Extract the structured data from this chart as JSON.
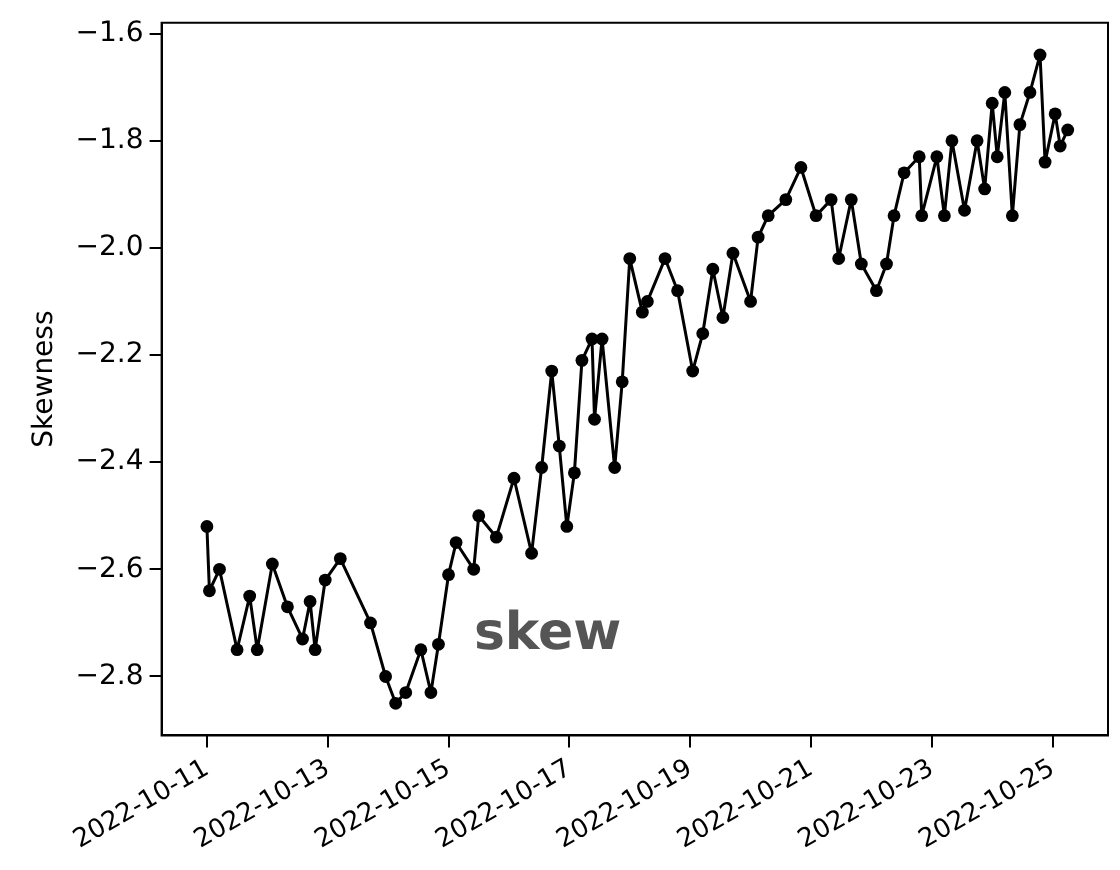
{
  "chart_data": {
    "type": "line",
    "ylabel": "Skewness",
    "annotations": [
      "skew"
    ],
    "marker": "circle",
    "grid": false,
    "legend": false,
    "xlim": [
      "2022-10-10T06:00",
      "2022-10-25T22:00"
    ],
    "ylim": [
      -2.91,
      -1.58
    ],
    "xticks": [
      {
        "value": "2022-10-11",
        "label": "2022-10-11"
      },
      {
        "value": "2022-10-13",
        "label": "2022-10-13"
      },
      {
        "value": "2022-10-15",
        "label": "2022-10-15"
      },
      {
        "value": "2022-10-17",
        "label": "2022-10-17"
      },
      {
        "value": "2022-10-19",
        "label": "2022-10-19"
      },
      {
        "value": "2022-10-21",
        "label": "2022-10-21"
      },
      {
        "value": "2022-10-23",
        "label": "2022-10-23"
      },
      {
        "value": "2022-10-25",
        "label": "2022-10-25"
      }
    ],
    "yticks": [
      {
        "value": -2.8,
        "label": "−2.8"
      },
      {
        "value": -2.6,
        "label": "−2.6"
      },
      {
        "value": -2.4,
        "label": "−2.4"
      },
      {
        "value": -2.2,
        "label": "−2.2"
      },
      {
        "value": -2.0,
        "label": "−2.0"
      },
      {
        "value": -1.8,
        "label": "−1.8"
      },
      {
        "value": -1.6,
        "label": "−1.6"
      }
    ],
    "x": [
      "2022-10-11T00:00",
      "2022-10-11T01:00",
      "2022-10-11T05:00",
      "2022-10-11T12:00",
      "2022-10-11T17:00",
      "2022-10-11T20:00",
      "2022-10-12T02:00",
      "2022-10-12T08:00",
      "2022-10-12T14:00",
      "2022-10-12T17:00",
      "2022-10-12T19:00",
      "2022-10-12T23:00",
      "2022-10-13T05:00",
      "2022-10-13T17:00",
      "2022-10-13T23:00",
      "2022-10-14T03:00",
      "2022-10-14T07:00",
      "2022-10-14T13:00",
      "2022-10-14T17:00",
      "2022-10-14T20:00",
      "2022-10-15T00:00",
      "2022-10-15T03:00",
      "2022-10-15T10:00",
      "2022-10-15T12:00",
      "2022-10-15T19:00",
      "2022-10-16T02:00",
      "2022-10-16T09:00",
      "2022-10-16T13:00",
      "2022-10-16T17:00",
      "2022-10-16T20:00",
      "2022-10-16T23:00",
      "2022-10-17T02:00",
      "2022-10-17T05:00",
      "2022-10-17T09:00",
      "2022-10-17T10:00",
      "2022-10-17T13:00",
      "2022-10-17T18:00",
      "2022-10-17T21:00",
      "2022-10-18T00:00",
      "2022-10-18T05:00",
      "2022-10-18T07:00",
      "2022-10-18T14:00",
      "2022-10-18T19:00",
      "2022-10-19T01:00",
      "2022-10-19T05:00",
      "2022-10-19T09:00",
      "2022-10-19T13:00",
      "2022-10-19T17:00",
      "2022-10-20T00:00",
      "2022-10-20T03:00",
      "2022-10-20T07:00",
      "2022-10-20T14:00",
      "2022-10-20T20:00",
      "2022-10-21T02:00",
      "2022-10-21T08:00",
      "2022-10-21T11:00",
      "2022-10-21T16:00",
      "2022-10-21T20:00",
      "2022-10-22T02:00",
      "2022-10-22T06:00",
      "2022-10-22T09:00",
      "2022-10-22T13:00",
      "2022-10-22T19:00",
      "2022-10-22T20:00",
      "2022-10-23T02:00",
      "2022-10-23T05:00",
      "2022-10-23T08:00",
      "2022-10-23T13:00",
      "2022-10-23T18:00",
      "2022-10-23T21:00",
      "2022-10-24T00:00",
      "2022-10-24T02:00",
      "2022-10-24T05:00",
      "2022-10-24T08:00",
      "2022-10-24T11:00",
      "2022-10-24T15:00",
      "2022-10-24T19:00",
      "2022-10-24T21:00",
      "2022-10-25T01:00",
      "2022-10-25T03:00",
      "2022-10-25T06:00"
    ],
    "series": [
      {
        "color": "#000000",
        "values": [
          -2.52,
          -2.64,
          -2.6,
          -2.75,
          -2.65,
          -2.75,
          -2.59,
          -2.67,
          -2.73,
          -2.66,
          -2.75,
          -2.62,
          -2.58,
          -2.7,
          -2.8,
          -2.85,
          -2.83,
          -2.75,
          -2.83,
          -2.74,
          -2.61,
          -2.55,
          -2.6,
          -2.5,
          -2.54,
          -2.43,
          -2.57,
          -2.41,
          -2.23,
          -2.37,
          -2.52,
          -2.42,
          -2.21,
          -2.17,
          -2.32,
          -2.17,
          -2.41,
          -2.25,
          -2.02,
          -2.12,
          -2.1,
          -2.02,
          -2.08,
          -2.23,
          -2.16,
          -2.04,
          -2.13,
          -2.01,
          -2.1,
          -1.98,
          -1.94,
          -1.91,
          -1.85,
          -1.94,
          -1.91,
          -2.02,
          -1.91,
          -2.03,
          -2.08,
          -2.03,
          -1.94,
          -1.86,
          -1.83,
          -1.94,
          -1.83,
          -1.94,
          -1.8,
          -1.93,
          -1.8,
          -1.89,
          -1.73,
          -1.83,
          -1.71,
          -1.94,
          -1.77,
          -1.71,
          -1.64,
          -1.84,
          -1.75,
          -1.81,
          -1.78
        ]
      }
    ]
  }
}
